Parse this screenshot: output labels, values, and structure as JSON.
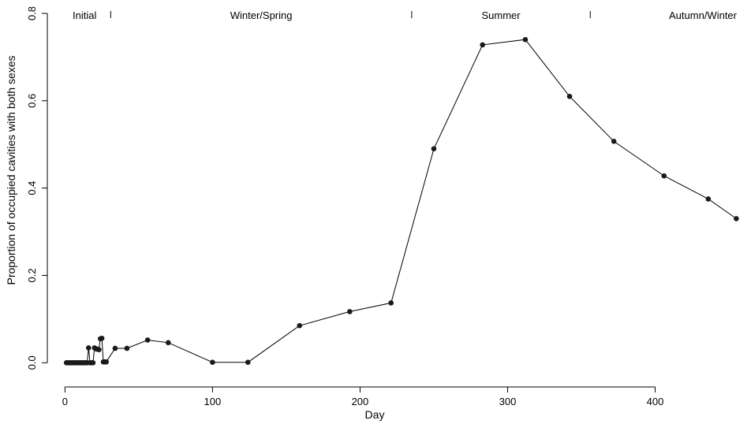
{
  "chart_data": {
    "type": "line",
    "title": "",
    "xlabel": "Day",
    "ylabel": "Proportion of occupied cavities with both sexes",
    "xlim": [
      -5,
      458
    ],
    "ylim": [
      -0.032,
      0.8
    ],
    "xticks": [
      0,
      100,
      200,
      300,
      400
    ],
    "xtick_labels": [
      "0",
      "100",
      "200",
      "300",
      "400"
    ],
    "yticks": [
      0.0,
      0.2,
      0.4,
      0.6,
      0.8
    ],
    "ytick_labels": [
      "0.0",
      "0.2",
      "0.4",
      "0.6",
      "0.8"
    ],
    "grid": false,
    "legend": "none",
    "line_color": "#000000",
    "marker_color": "#1a1a1a",
    "periods": [
      {
        "label": "Initial",
        "start": 0,
        "end": 31
      },
      {
        "label": "Winter/Spring",
        "start": 31,
        "end": 235
      },
      {
        "label": "Summer",
        "start": 235,
        "end": 356
      },
      {
        "label": "Autumn/Winter",
        "start": 356,
        "end": 458
      }
    ],
    "period_boundaries": [
      31,
      235,
      356
    ],
    "series": [
      {
        "x": [
          1,
          2,
          3,
          4,
          5,
          6,
          7,
          8,
          9,
          10,
          11,
          12,
          13,
          14,
          15,
          16,
          17,
          18,
          19,
          20,
          21,
          22,
          23,
          24,
          25,
          26,
          27,
          28,
          34,
          42,
          56,
          70,
          100,
          124,
          159,
          193,
          221,
          250,
          283,
          312,
          342,
          372,
          406,
          436,
          455
        ],
        "y": [
          0,
          0,
          0,
          0,
          0,
          0,
          0,
          0,
          0,
          0,
          0,
          0,
          0,
          0,
          0,
          0.034,
          0,
          0,
          0,
          0.034,
          0.032,
          0.031,
          0.03,
          0.055,
          0.056,
          0.002,
          0.002,
          0.002,
          0.033,
          0.033,
          0.052,
          0.046,
          0.001,
          0.001,
          0.085,
          0.117,
          0.137,
          0.49,
          0.728,
          0.74,
          0.61,
          0.507,
          0.428,
          0.375,
          0.33
        ]
      }
    ]
  }
}
